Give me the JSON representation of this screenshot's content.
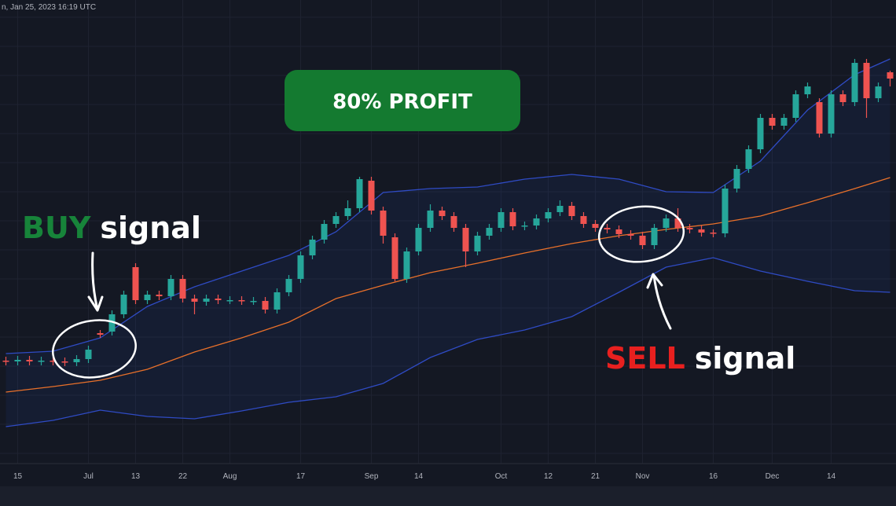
{
  "header": {
    "timestamp": "n, Jan 25, 2023 16:19 UTC"
  },
  "chart_data": {
    "type": "candlestick",
    "categories": [
      null,
      "15",
      null,
      null,
      null,
      null,
      null,
      "Jul",
      null,
      null,
      null,
      "13",
      null,
      null,
      null,
      "22",
      null,
      null,
      null,
      "Aug",
      null,
      null,
      null,
      null,
      null,
      "17",
      null,
      null,
      null,
      null,
      null,
      "Sep",
      null,
      null,
      null,
      "14",
      null,
      null,
      null,
      null,
      null,
      null,
      "Oct",
      null,
      null,
      null,
      "12",
      null,
      null,
      null,
      "21",
      null,
      null,
      null,
      "Nov",
      null,
      null,
      null,
      null,
      null,
      "16",
      null,
      null,
      null,
      null,
      "Dec",
      null,
      null,
      null,
      null,
      "14",
      null,
      null,
      null,
      null,
      null
    ],
    "open": [
      13.1,
      13.0,
      13.2,
      13.0,
      13.1,
      13.0,
      12.9,
      13.3,
      16.6,
      16.8,
      19.0,
      25.0,
      20.8,
      21.5,
      21.3,
      23.5,
      21.0,
      20.6,
      21.0,
      20.8,
      20.8,
      20.7,
      20.7,
      19.6,
      21.8,
      23.5,
      26.5,
      28.5,
      30.5,
      31.5,
      32.5,
      36.0,
      32.2,
      28.8,
      23.5,
      27.0,
      30.0,
      32.2,
      31.5,
      30.0,
      27.0,
      29.0,
      30.0,
      32.0,
      30.2,
      30.3,
      31.2,
      32.0,
      32.8,
      31.5,
      30.5,
      30.0,
      29.8,
      29.2,
      29.0,
      27.8,
      30.0,
      31.2,
      30.0,
      29.8,
      29.4,
      29.3,
      35.0,
      37.5,
      40.0,
      44.0,
      43.0,
      44.0,
      47.0,
      46.0,
      42.0,
      47.0,
      46.0,
      51.0,
      46.5,
      49.8
    ],
    "high": [
      13.6,
      13.7,
      13.7,
      13.6,
      13.6,
      13.5,
      13.8,
      15.0,
      17.0,
      19.5,
      22.0,
      25.5,
      22.0,
      22.0,
      24.0,
      24.0,
      21.5,
      21.5,
      21.5,
      21.3,
      21.3,
      21.2,
      21.2,
      22.3,
      24.0,
      27.0,
      29.0,
      31.0,
      32.0,
      33.5,
      36.5,
      36.5,
      32.7,
      29.3,
      27.5,
      30.5,
      33.0,
      32.7,
      32.0,
      30.5,
      29.5,
      30.5,
      32.5,
      32.5,
      30.8,
      31.7,
      32.5,
      33.5,
      33.3,
      32.0,
      31.0,
      30.5,
      30.3,
      29.7,
      29.5,
      30.5,
      31.7,
      32.5,
      30.5,
      30.3,
      29.8,
      35.5,
      38.0,
      40.5,
      44.5,
      44.5,
      44.5,
      47.5,
      48.5,
      46.5,
      47.5,
      47.5,
      51.5,
      51.5,
      48.5,
      50.0
    ],
    "low": [
      12.5,
      12.5,
      12.5,
      12.5,
      12.5,
      12.4,
      12.4,
      12.8,
      16.0,
      16.3,
      18.5,
      20.3,
      20.3,
      20.8,
      20.8,
      20.5,
      19.0,
      20.1,
      20.3,
      20.3,
      20.2,
      20.2,
      19.1,
      19.1,
      21.3,
      23.0,
      26.0,
      28.0,
      30.0,
      31.0,
      32.0,
      31.7,
      28.0,
      23.2,
      23.0,
      26.5,
      29.5,
      31.0,
      29.5,
      25.0,
      26.5,
      28.5,
      29.5,
      29.7,
      29.7,
      29.8,
      30.7,
      31.5,
      31.0,
      30.0,
      29.5,
      29.3,
      28.7,
      28.5,
      27.3,
      27.3,
      29.5,
      29.5,
      29.3,
      28.9,
      28.8,
      28.8,
      34.5,
      37.0,
      39.5,
      42.5,
      42.5,
      43.5,
      46.5,
      41.5,
      41.5,
      45.5,
      45.5,
      44.0,
      46.0,
      48.0
    ],
    "close": [
      13.0,
      13.2,
      13.0,
      13.1,
      13.0,
      12.9,
      13.3,
      14.5,
      16.4,
      19.0,
      21.5,
      20.8,
      21.5,
      21.3,
      23.5,
      21.0,
      20.6,
      21.0,
      20.8,
      20.8,
      20.7,
      20.7,
      19.6,
      21.8,
      23.5,
      26.5,
      28.5,
      30.5,
      31.5,
      32.5,
      36.2,
      32.2,
      29.0,
      23.5,
      27.0,
      30.0,
      32.2,
      31.5,
      30.0,
      27.0,
      29.0,
      30.0,
      32.0,
      30.2,
      30.3,
      31.2,
      32.0,
      32.8,
      31.5,
      30.5,
      30.0,
      29.8,
      29.2,
      29.0,
      27.8,
      30.0,
      31.2,
      30.0,
      29.8,
      29.4,
      29.3,
      35.0,
      37.5,
      40.0,
      44.0,
      43.0,
      44.0,
      47.0,
      48.0,
      42.0,
      47.0,
      46.0,
      51.0,
      46.5,
      48.0,
      49.0
    ],
    "colors": {
      "up": "#26a69a",
      "down": "#ef5350"
    },
    "ylim": [
      0,
      59
    ],
    "bands": {
      "index": [
        0,
        4,
        8,
        12,
        16,
        20,
        24,
        28,
        32,
        36,
        40,
        44,
        48,
        52,
        56,
        60,
        64,
        68,
        72,
        75
      ],
      "upper": [
        14,
        14.3,
        16,
        20,
        22.5,
        24.5,
        26.5,
        29.5,
        34.5,
        35,
        35.2,
        36.2,
        36.8,
        36.2,
        34.6,
        34.5,
        38.5,
        45,
        49.5,
        51.5
      ],
      "middle": [
        9.1,
        9.8,
        10.6,
        12,
        14.2,
        16,
        18,
        21,
        22.7,
        24.3,
        25.5,
        26.8,
        28,
        29,
        29.8,
        30.5,
        31.5,
        33.2,
        35,
        36.4
      ],
      "lower": [
        4.7,
        5.5,
        6.8,
        6,
        5.7,
        6.7,
        7.8,
        8.5,
        10.2,
        13.5,
        15.8,
        17,
        18.7,
        21.8,
        25,
        26.2,
        24.5,
        23.2,
        22,
        21.8
      ],
      "band_color": "#2f4bc4",
      "middle_color": "#e8702a",
      "fill": "#2962ff"
    },
    "annotations": {
      "profit": "80% PROFIT",
      "buy": {
        "keyword": "BUY",
        "text": "signal",
        "color": "#17843a"
      },
      "sell": {
        "keyword": "SELL",
        "text": "signal",
        "color": "#e8201f"
      }
    }
  }
}
